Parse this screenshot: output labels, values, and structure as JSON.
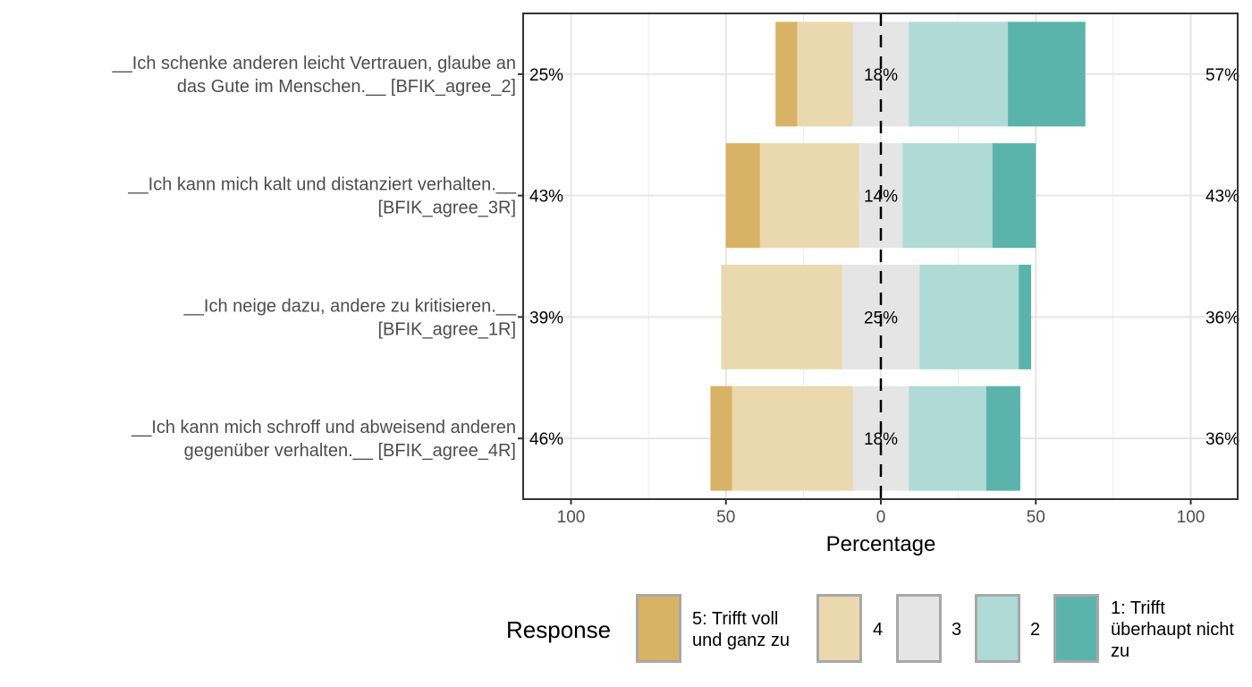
{
  "chart_data": {
    "type": "bar",
    "orientation": "horizontal",
    "stacking": "diverging",
    "xlabel": "Percentage",
    "xlim": [
      -115,
      115
    ],
    "xticks": [
      -100,
      -50,
      0,
      50,
      100
    ],
    "xtick_labels": [
      "100",
      "50",
      "0",
      "50",
      "100"
    ],
    "grid": true,
    "legend": {
      "title": "Response",
      "placement": "bottom",
      "entries": [
        {
          "label": "5: Trifft voll und ganz zu",
          "lines": [
            "5: Trifft voll",
            "und ganz zu"
          ],
          "color": "#D8B365"
        },
        {
          "label": "4",
          "lines": [
            "4"
          ],
          "color": "#EAD9AF"
        },
        {
          "label": "3",
          "lines": [
            "3"
          ],
          "color": "#E5E5E5"
        },
        {
          "label": "2",
          "lines": [
            "2"
          ],
          "color": "#AFDAD5"
        },
        {
          "label": "1: Trifft überhaupt nicht zu",
          "lines": [
            "1: Trifft",
            "überhaupt nicht",
            "zu"
          ],
          "color": "#5AB4AC"
        }
      ]
    },
    "items": [
      {
        "label_lines": [
          "__Ich schenke anderen leicht Vertrauen, glaube an",
          "das Gute im Menschen.__ [BFIK_agree_2]"
        ],
        "values": [
          7,
          18,
          18,
          32,
          25
        ],
        "left_pct": "25%",
        "center_pct": "18%",
        "right_pct": "57%"
      },
      {
        "label_lines": [
          "__Ich kann mich kalt und distanziert verhalten.__",
          "[BFIK_agree_3R]"
        ],
        "values": [
          11,
          32,
          14,
          29,
          14
        ],
        "left_pct": "43%",
        "center_pct": "14%",
        "right_pct": "43%"
      },
      {
        "label_lines": [
          "__Ich neige dazu, andere zu kritisieren.__",
          "[BFIK_agree_1R]"
        ],
        "values": [
          0,
          39,
          25,
          32,
          4
        ],
        "left_pct": "39%",
        "center_pct": "25%",
        "right_pct": "36%"
      },
      {
        "label_lines": [
          "__Ich kann mich schroff und abweisend anderen",
          "gegenüber verhalten.__ [BFIK_agree_4R]"
        ],
        "values": [
          7,
          39,
          18,
          25,
          11
        ],
        "left_pct": "46%",
        "center_pct": "18%",
        "right_pct": "36%"
      }
    ]
  }
}
